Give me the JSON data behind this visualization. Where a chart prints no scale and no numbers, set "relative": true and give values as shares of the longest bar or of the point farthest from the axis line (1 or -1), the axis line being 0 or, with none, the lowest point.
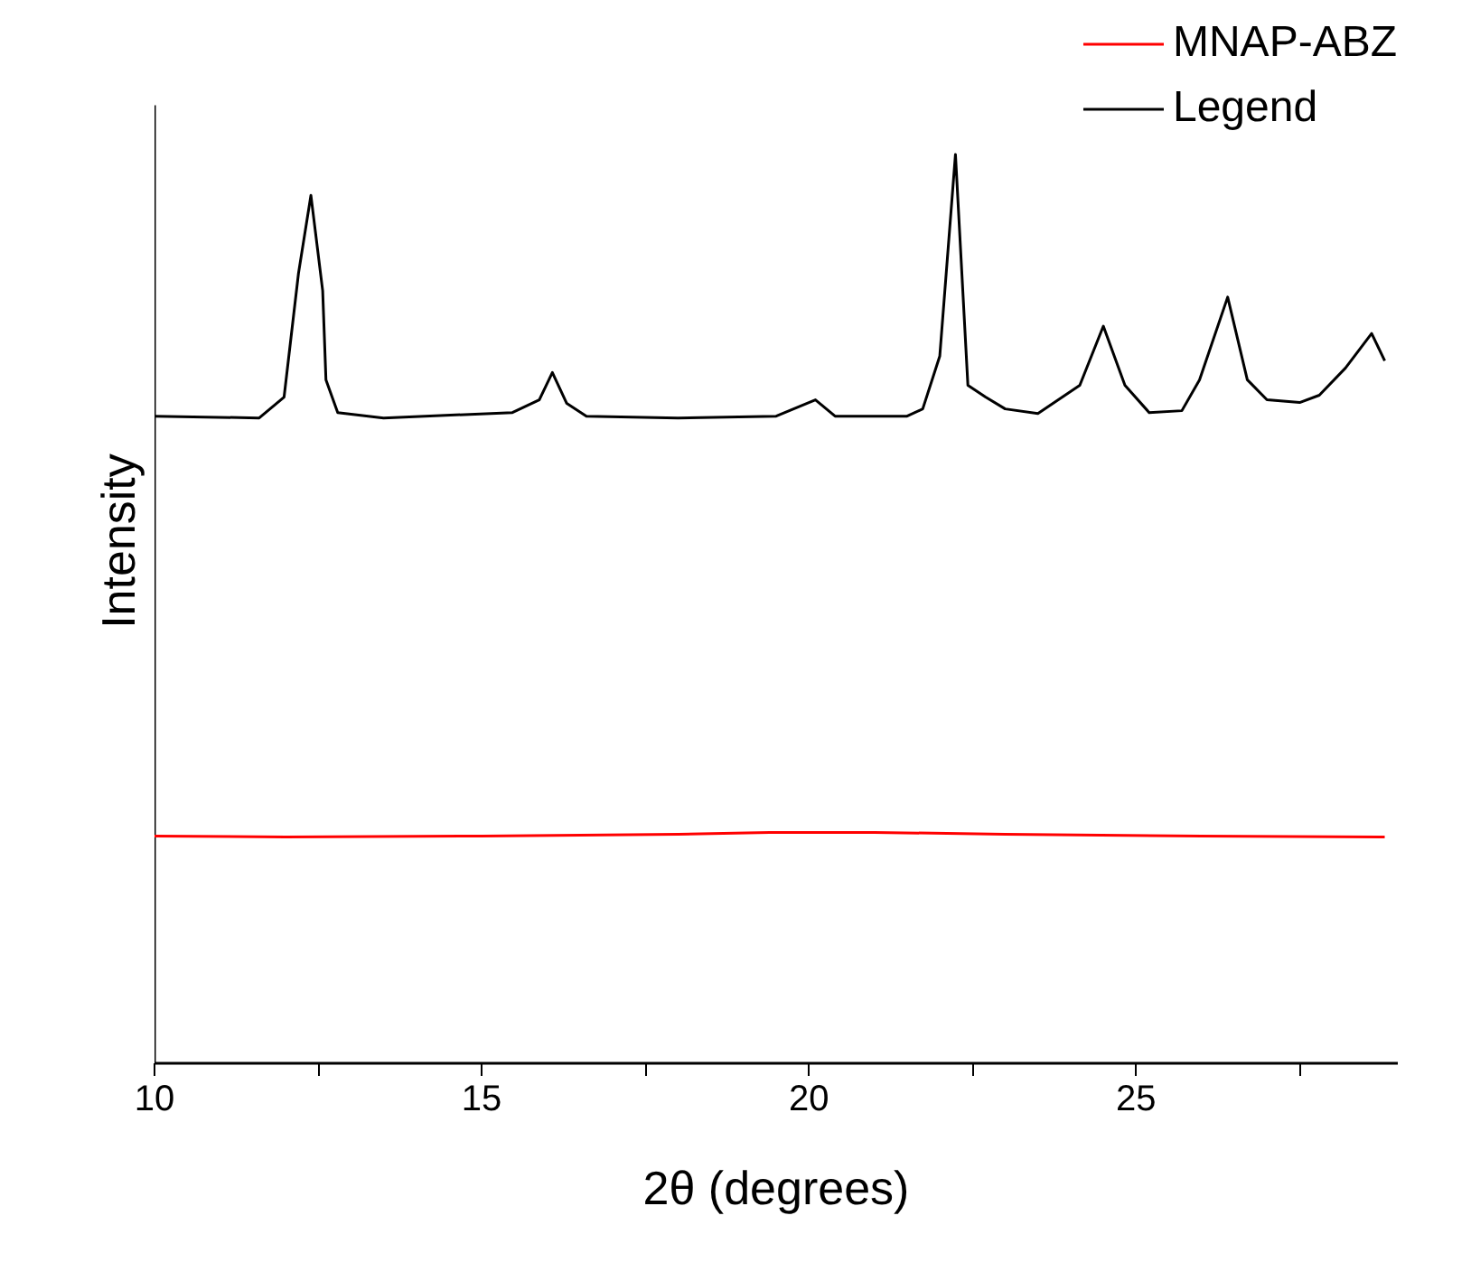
{
  "chart_data": {
    "type": "line",
    "xlabel": "2θ (degrees)",
    "ylabel": "Intensity",
    "relative": true,
    "legend": "top right",
    "grid": false,
    "xlim": [
      10,
      29
    ],
    "xticks": [
      10,
      {
        "value": 12.5,
        "label": null
      },
      15,
      {
        "value": 17.5,
        "label": null
      },
      20,
      {
        "value": 22.5,
        "label": null
      },
      25,
      {
        "value": 27.5,
        "label": null
      }
    ],
    "series": [
      {
        "name": "MNAP-ABZ",
        "color": "#ff0000",
        "x": [
          10,
          12,
          15,
          18,
          19.4,
          21,
          23,
          26,
          28.8
        ],
        "values": [
          0.25,
          0.249,
          0.25,
          0.252,
          0.254,
          0.254,
          0.252,
          0.25,
          0.249
        ]
      },
      {
        "name": "Legend",
        "color": "#000000",
        "x": [
          10,
          11.6,
          11.98,
          12.2,
          12.39,
          12.57,
          12.62,
          12.8,
          13.5,
          15.47,
          15.88,
          16.08,
          16.3,
          16.6,
          18,
          19.5,
          20.1,
          20.4,
          21.5,
          21.74,
          22.0,
          22.24,
          22.43,
          22.7,
          23.0,
          23.5,
          24.14,
          24.5,
          24.83,
          25.2,
          25.7,
          25.97,
          26.4,
          26.7,
          27.0,
          27.5,
          27.8,
          28.2,
          28.6,
          28.8
        ],
        "values": [
          0.712,
          0.71,
          0.733,
          0.869,
          0.955,
          0.85,
          0.752,
          0.716,
          0.71,
          0.716,
          0.73,
          0.76,
          0.726,
          0.712,
          0.71,
          0.712,
          0.73,
          0.712,
          0.712,
          0.72,
          0.778,
          1.0,
          0.746,
          0.733,
          0.72,
          0.715,
          0.746,
          0.811,
          0.746,
          0.716,
          0.718,
          0.752,
          0.843,
          0.752,
          0.73,
          0.727,
          0.735,
          0.765,
          0.803,
          0.773
        ]
      }
    ]
  }
}
